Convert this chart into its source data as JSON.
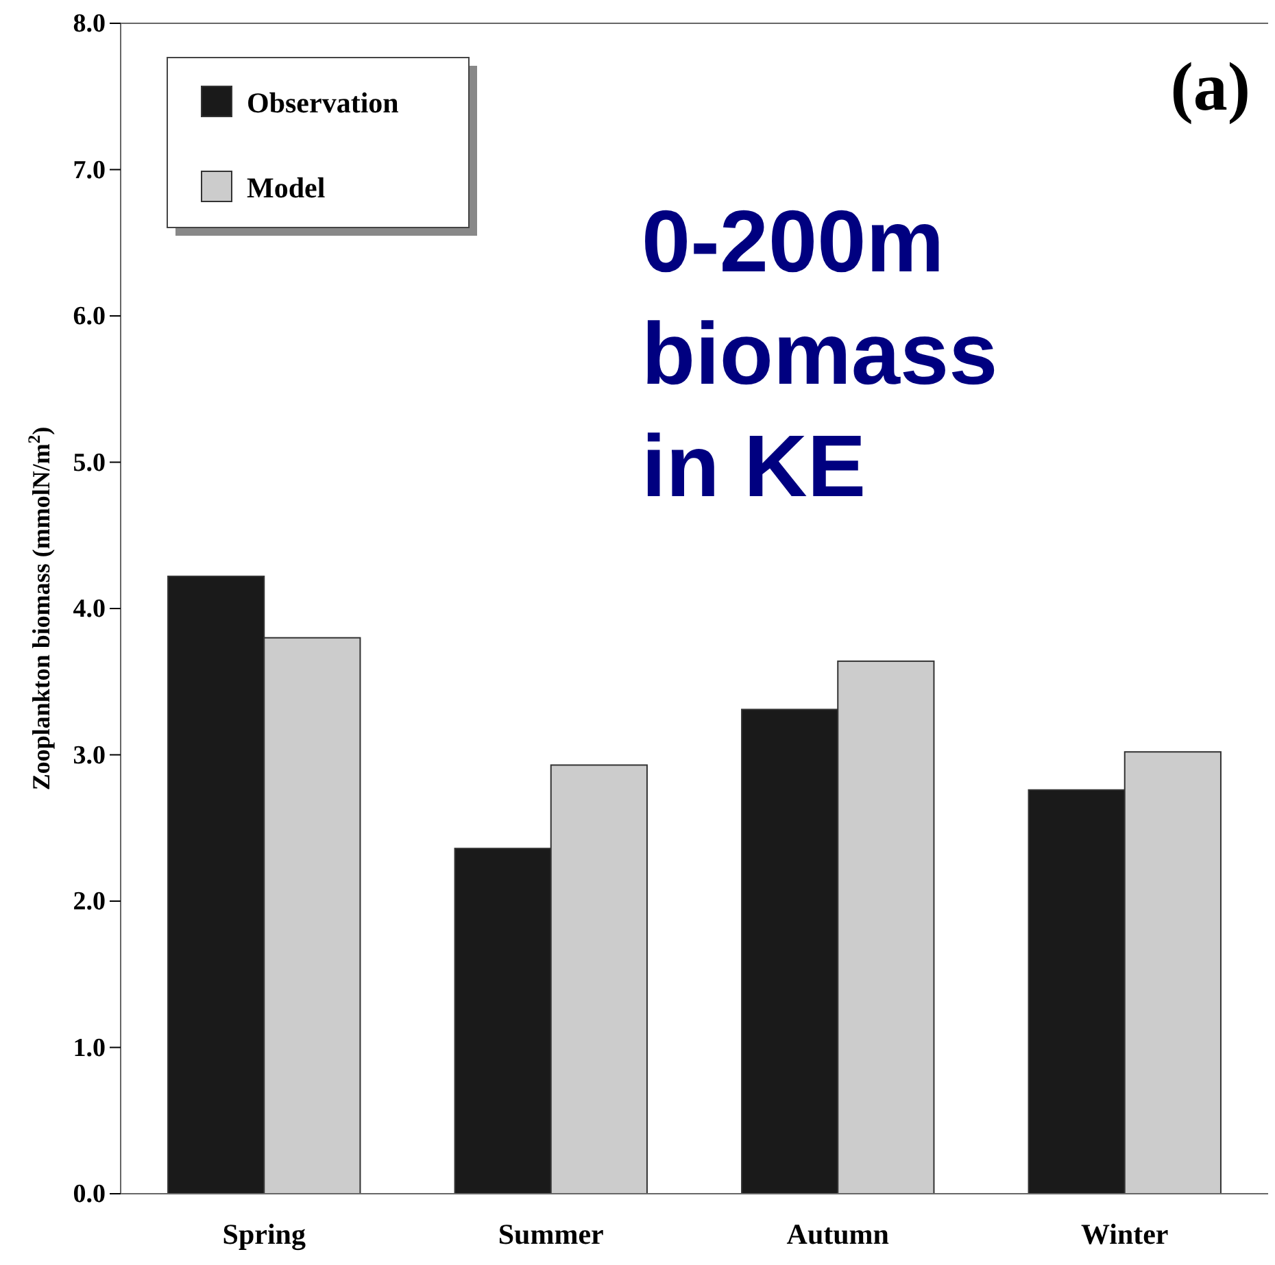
{
  "chart_data": {
    "type": "bar",
    "ylabel": "Zooplankton biomass (mmolN/m$^{2}$)",
    "categories": [
      "Spring",
      "Summer",
      "Autumn",
      "Winter"
    ],
    "series": [
      {
        "name": "Observation",
        "color": "#1a1a1a",
        "values": [
          4.22,
          2.36,
          3.31,
          2.76
        ]
      },
      {
        "name": "Model",
        "color": "#cccccc",
        "values": [
          3.8,
          2.93,
          3.64,
          3.02
        ]
      }
    ],
    "ylim": [
      0,
      8
    ],
    "yticks": [
      {
        "value": 0,
        "label": "0.0"
      },
      {
        "value": 1,
        "label": "1.0"
      },
      {
        "value": 2,
        "label": "2.0"
      },
      {
        "value": 3,
        "label": "3.0"
      },
      {
        "value": 4,
        "label": "4.0"
      },
      {
        "value": 5,
        "label": "5.0"
      },
      {
        "value": 6,
        "label": "6.0"
      },
      {
        "value": 7,
        "label": "7.0"
      },
      {
        "value": 8,
        "label": "8.0"
      }
    ],
    "grid": false,
    "legend": "top left",
    "annotations": [
      "(a)",
      "0-200m\nbiomass\nin KE"
    ]
  }
}
